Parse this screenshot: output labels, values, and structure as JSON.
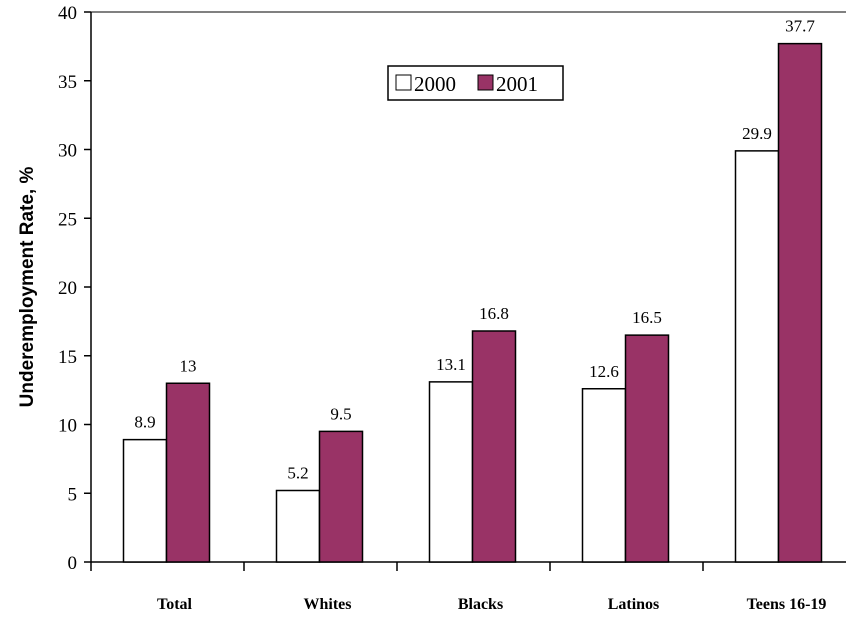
{
  "chart_data": {
    "type": "bar",
    "categories": [
      "Total",
      "Whites",
      "Blacks",
      "Latinos",
      "Teens 16-19"
    ],
    "series": [
      {
        "name": "2000",
        "values": [
          8.9,
          5.2,
          13.1,
          12.6,
          29.9
        ],
        "color": "#ffffff"
      },
      {
        "name": "2001",
        "values": [
          13,
          9.5,
          16.8,
          16.5,
          37.7
        ],
        "color": "#993366"
      }
    ],
    "data_labels": [
      [
        "8.9",
        "5.2",
        "13.1",
        "12.6",
        "29.9"
      ],
      [
        "13",
        "9.5",
        "16.8",
        "16.5",
        "37.7"
      ]
    ],
    "title": "",
    "xlabel": "",
    "ylabel": "Underemployment Rate, %",
    "ylim": [
      0,
      40
    ],
    "yticks": [
      0,
      5,
      10,
      15,
      20,
      25,
      30,
      35,
      40
    ],
    "grid": false,
    "legend": {
      "placement": "top-center"
    }
  }
}
